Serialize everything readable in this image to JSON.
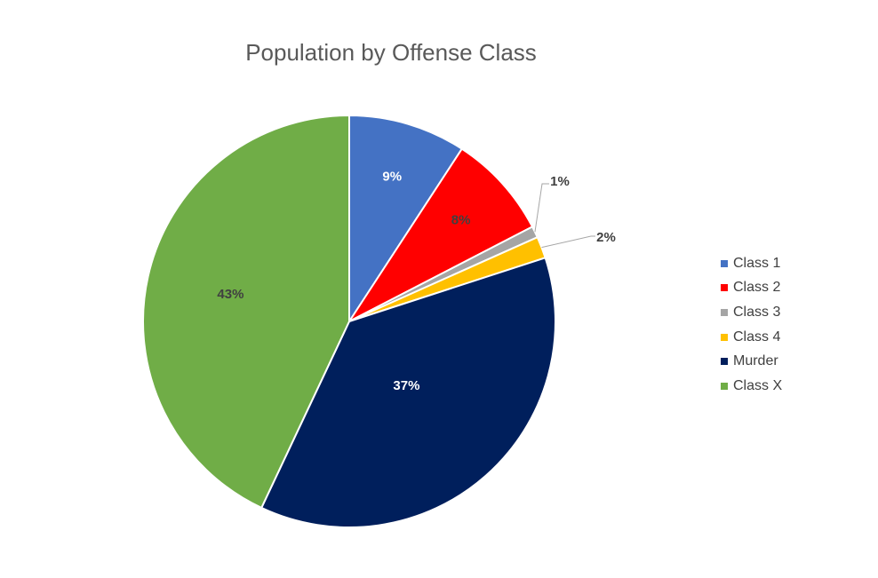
{
  "chart_data": {
    "type": "pie",
    "title": "Population by Offense Class",
    "categories": [
      "Class 1",
      "Class 2",
      "Class 3",
      "Class 4",
      "Murder",
      "Class X"
    ],
    "values": [
      9.2,
      8.2,
      0.9,
      1.7,
      37.0,
      43.0
    ],
    "data_labels": [
      "9%",
      "8%",
      "1%",
      "2%",
      "37%",
      "43%"
    ],
    "colors": [
      "#4472C4",
      "#FF0000",
      "#A5A5A5",
      "#FFC000",
      "#001F5C",
      "#70AD47"
    ],
    "label_colors": [
      "#ffffff",
      "#404040",
      "#404040",
      "#404040",
      "#ffffff",
      "#404040"
    ],
    "legend_position": "right",
    "start_angle_deg": 0,
    "direction": "clockwise"
  }
}
